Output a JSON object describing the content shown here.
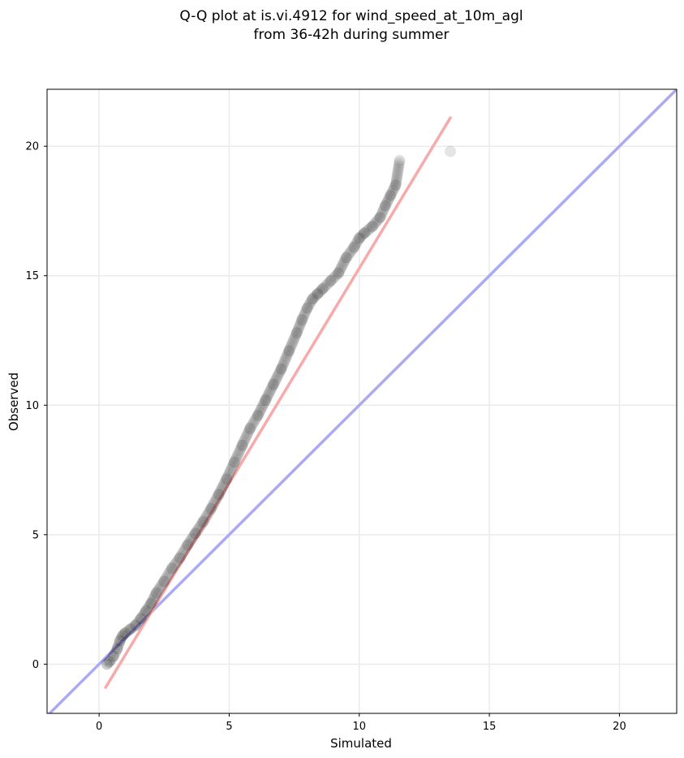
{
  "chart_data": {
    "type": "scatter",
    "title_lines": [
      "Q-Q plot at is.vi.4912 for wind_speed_at_10m_agl",
      "from 36-42h during summer"
    ],
    "xlabel": "Simulated",
    "ylabel": "Observed",
    "xlim": [
      -2.0,
      22.2
    ],
    "ylim": [
      -1.9,
      22.2
    ],
    "x_ticks": [
      0,
      5,
      10,
      15,
      20
    ],
    "y_ticks": [
      0,
      5,
      10,
      15,
      20
    ],
    "grid": true,
    "identity_line": {
      "color": "#aaaaf5",
      "from": [
        -2.0,
        -2.0
      ],
      "to": [
        22.2,
        22.2
      ]
    },
    "fit_line": {
      "color": "#f7aaaa",
      "from": [
        0.25,
        -0.9
      ],
      "to": [
        13.5,
        21.1
      ]
    },
    "point_color": "#000000",
    "quantiles": {
      "simulated": [
        0.3,
        0.4,
        0.55,
        0.7,
        0.8,
        0.9,
        1.0,
        1.2,
        1.4,
        1.6,
        1.8,
        2.0,
        2.2,
        2.5,
        2.8,
        3.1,
        3.4,
        3.7,
        4.0,
        4.3,
        4.6,
        4.9,
        5.2,
        5.5,
        5.8,
        6.1,
        6.4,
        6.7,
        7.0,
        7.3,
        7.6,
        7.8,
        8.0,
        8.2,
        8.4,
        8.6,
        8.9,
        9.2,
        9.5,
        9.8,
        10.0,
        10.2,
        10.5,
        10.8,
        11.0,
        11.2,
        11.4,
        11.55,
        13.5
      ],
      "observed": [
        0.0,
        0.1,
        0.3,
        0.6,
        0.9,
        1.1,
        1.2,
        1.35,
        1.5,
        1.75,
        2.05,
        2.35,
        2.75,
        3.2,
        3.7,
        4.1,
        4.6,
        5.05,
        5.5,
        6.0,
        6.55,
        7.15,
        7.8,
        8.45,
        9.1,
        9.6,
        10.2,
        10.8,
        11.4,
        12.1,
        12.8,
        13.3,
        13.75,
        14.1,
        14.3,
        14.5,
        14.8,
        15.1,
        15.7,
        16.1,
        16.45,
        16.65,
        16.9,
        17.25,
        17.7,
        18.1,
        18.5,
        19.45,
        19.8
      ]
    }
  }
}
